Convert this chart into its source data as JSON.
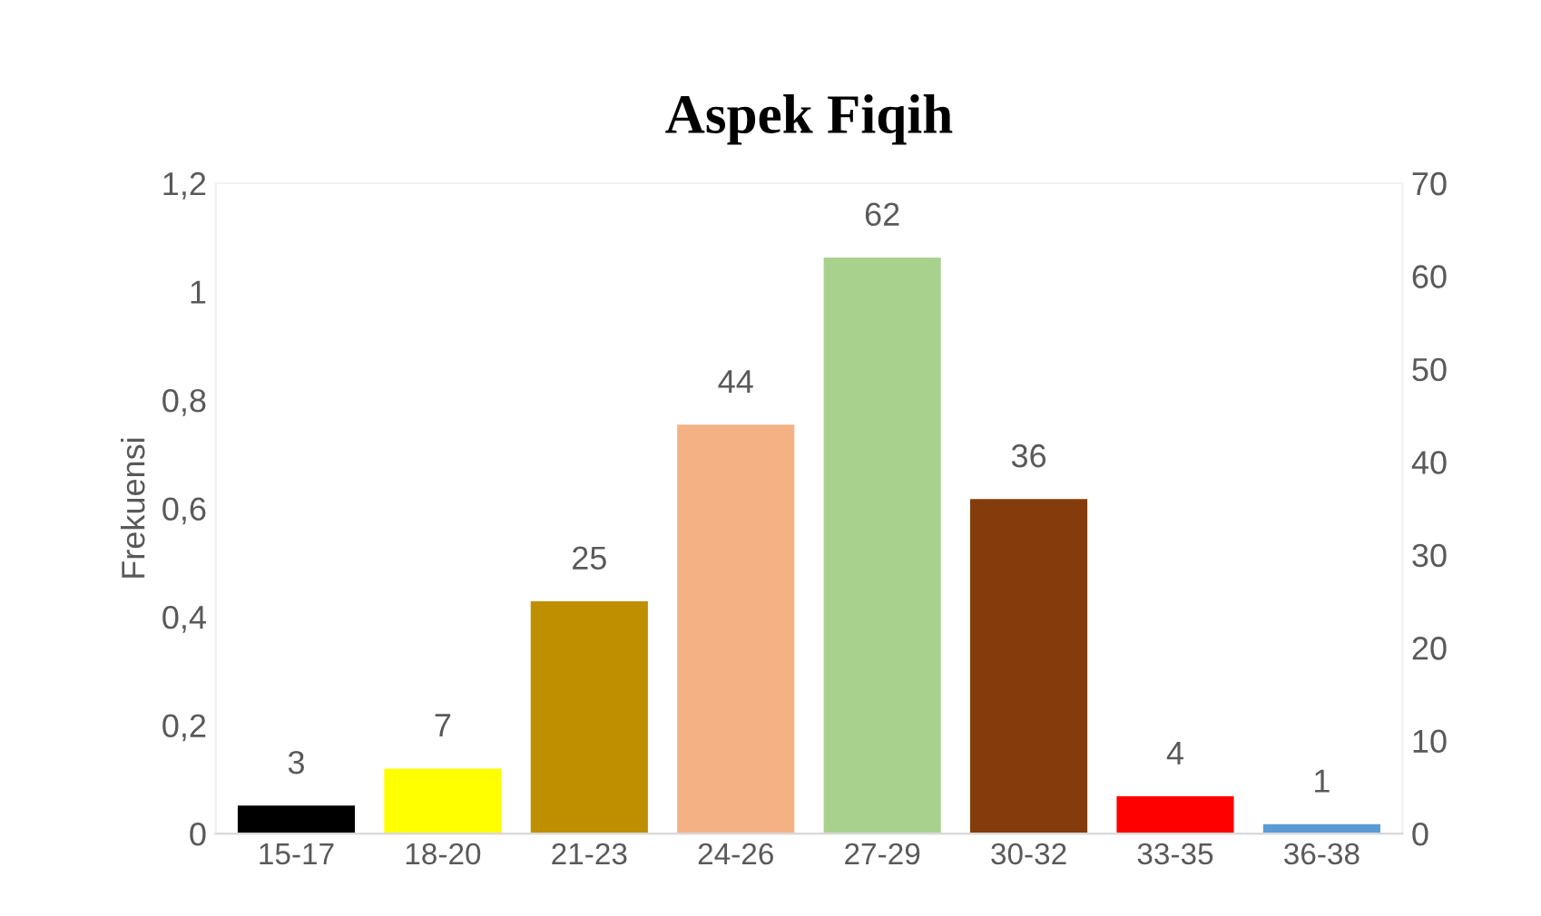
{
  "chart_data": {
    "type": "bar",
    "title": "Aspek Fiqih",
    "ylabel": "Frekuensi",
    "categories": [
      "15-17",
      "18-20",
      "21-23",
      "24-26",
      "27-29",
      "30-32",
      "33-35",
      "36-38"
    ],
    "series": [
      {
        "axis": "y2",
        "values": [
          3,
          7,
          25,
          44,
          62,
          36,
          4,
          1
        ],
        "colors": [
          "#000000",
          "#ffff00",
          "#bf8f00",
          "#f4b183",
          "#a9d18e",
          "#843c0c",
          "#ff0000",
          "#5b9bd5"
        ]
      }
    ],
    "ylim": [
      0,
      1.2
    ],
    "yticks": [
      0,
      {
        "value": 0.2,
        "label": "0,2"
      },
      {
        "value": 0.4,
        "label": "0,4"
      },
      {
        "value": 0.6,
        "label": "0,6"
      },
      {
        "value": 0.8,
        "label": "0,8"
      },
      1,
      {
        "value": 1.2,
        "label": "1,2"
      }
    ],
    "y2lim": [
      0,
      70
    ],
    "y2ticks": [
      0,
      10,
      20,
      30,
      40,
      50,
      60,
      70
    ],
    "data_labels": true,
    "grid": false,
    "legend": false
  }
}
